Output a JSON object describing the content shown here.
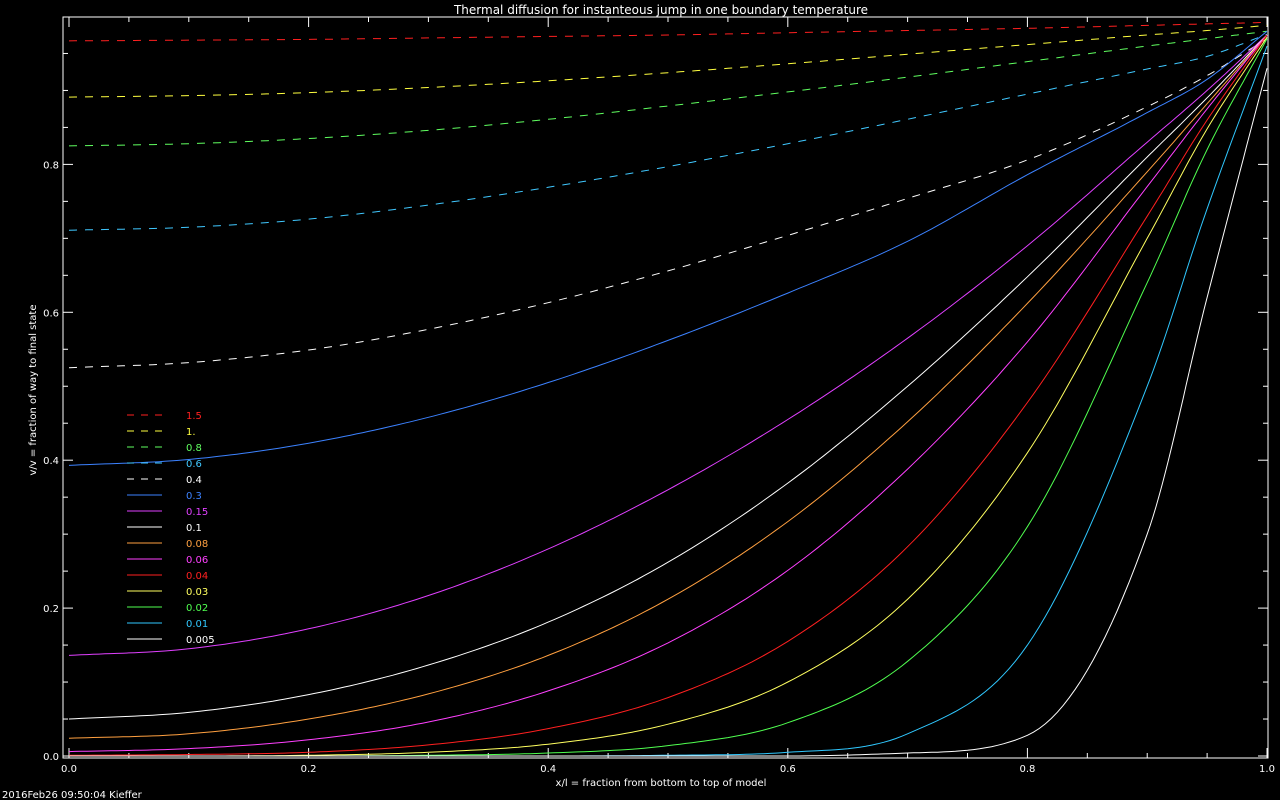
{
  "chart_data": {
    "type": "line",
    "title": "Thermal diffusion for instanteous jump in one boundary temperature",
    "xlabel": "x/l = fraction from bottom to top of model",
    "ylabel": "v/v = fraction of way to final state",
    "xlim": [
      0.0,
      1.0
    ],
    "ylim": [
      0.0,
      1.0
    ],
    "x_ticks": [
      "0.0",
      "0.2",
      "0.4",
      "0.6",
      "0.8",
      "1.0"
    ],
    "y_ticks": [
      "0.0",
      "0.2",
      "0.4",
      "0.6",
      "0.8"
    ],
    "grid": false,
    "legend_position": "left-center",
    "x": [
      0.0,
      0.1,
      0.2,
      0.3,
      0.4,
      0.5,
      0.6,
      0.7,
      0.8,
      0.9,
      0.95,
      1.0
    ],
    "series": [
      {
        "name": "1.5",
        "color": "#ff2020",
        "dashed": true,
        "values": [
          0.967,
          0.968,
          0.969,
          0.971,
          0.973,
          0.975,
          0.978,
          0.981,
          0.984,
          0.988,
          0.99,
          0.992
        ]
      },
      {
        "name": "1.",
        "color": "#ffff40",
        "dashed": true,
        "values": [
          0.891,
          0.893,
          0.897,
          0.904,
          0.913,
          0.924,
          0.936,
          0.949,
          0.962,
          0.975,
          0.981,
          0.988
        ]
      },
      {
        "name": "0.8",
        "color": "#60ff60",
        "dashed": true,
        "values": [
          0.825,
          0.828,
          0.835,
          0.846,
          0.861,
          0.879,
          0.898,
          0.918,
          0.939,
          0.96,
          0.97,
          0.98
        ]
      },
      {
        "name": "0.6",
        "color": "#40c8ff",
        "dashed": true,
        "values": [
          0.711,
          0.715,
          0.726,
          0.745,
          0.769,
          0.797,
          0.828,
          0.861,
          0.895,
          0.929,
          0.946,
          0.976
        ]
      },
      {
        "name": "0.4",
        "color": "#ffffff",
        "dashed": true,
        "values": [
          0.525,
          0.532,
          0.549,
          0.577,
          0.613,
          0.656,
          0.704,
          0.754,
          0.806,
          0.878,
          0.92,
          0.97
        ]
      },
      {
        "name": "0.3",
        "color": "#3c82ff",
        "dashed": false,
        "values": [
          0.393,
          0.401,
          0.423,
          0.458,
          0.505,
          0.562,
          0.626,
          0.696,
          0.786,
          0.87,
          0.915,
          0.98
        ]
      },
      {
        "name": "0.15",
        "color": "#e040ff",
        "dashed": false,
        "values": [
          0.136,
          0.145,
          0.172,
          0.217,
          0.28,
          0.36,
          0.455,
          0.565,
          0.69,
          0.83,
          0.9,
          0.975
        ]
      },
      {
        "name": "0.1",
        "color": "#ffffff",
        "dashed": false,
        "values": [
          0.05,
          0.059,
          0.083,
          0.123,
          0.181,
          0.262,
          0.369,
          0.5,
          0.648,
          0.81,
          0.89,
          0.975
        ]
      },
      {
        "name": "0.08",
        "color": "#ffa040",
        "dashed": false,
        "values": [
          0.024,
          0.03,
          0.05,
          0.084,
          0.136,
          0.212,
          0.317,
          0.452,
          0.612,
          0.79,
          0.882,
          0.975
        ]
      },
      {
        "name": "0.06",
        "color": "#ff40ff",
        "dashed": false,
        "values": [
          0.006,
          0.01,
          0.022,
          0.046,
          0.088,
          0.153,
          0.251,
          0.388,
          0.56,
          0.77,
          0.875,
          0.975
        ]
      },
      {
        "name": "0.04",
        "color": "#ff2020",
        "dashed": false,
        "values": [
          0.001,
          0.002,
          0.005,
          0.015,
          0.037,
          0.079,
          0.155,
          0.283,
          0.478,
          0.73,
          0.86,
          0.975
        ]
      },
      {
        "name": "0.03",
        "color": "#ffff60",
        "dashed": false,
        "values": [
          0.0,
          0.0,
          0.001,
          0.005,
          0.016,
          0.043,
          0.1,
          0.212,
          0.41,
          0.7,
          0.848,
          0.972
        ]
      },
      {
        "name": "0.02",
        "color": "#50ff50",
        "dashed": false,
        "values": [
          0.0,
          0.0,
          0.0,
          0.001,
          0.004,
          0.014,
          0.045,
          0.128,
          0.31,
          0.64,
          0.82,
          0.97
        ]
      },
      {
        "name": "0.01",
        "color": "#30c8ff",
        "dashed": false,
        "values": [
          0.0,
          0.0,
          0.0,
          0.0,
          0.0,
          0.001,
          0.005,
          0.03,
          0.15,
          0.5,
          0.74,
          0.96
        ]
      },
      {
        "name": "0.005",
        "color": "#ffffff",
        "dashed": false,
        "values": [
          0.0,
          0.0,
          0.0,
          0.0,
          0.0,
          0.0,
          0.0,
          0.004,
          0.028,
          0.3,
          0.62,
          0.93
        ]
      }
    ]
  },
  "footer": {
    "timestamp": "2016Feb26 09:50:04 Kieffer"
  }
}
